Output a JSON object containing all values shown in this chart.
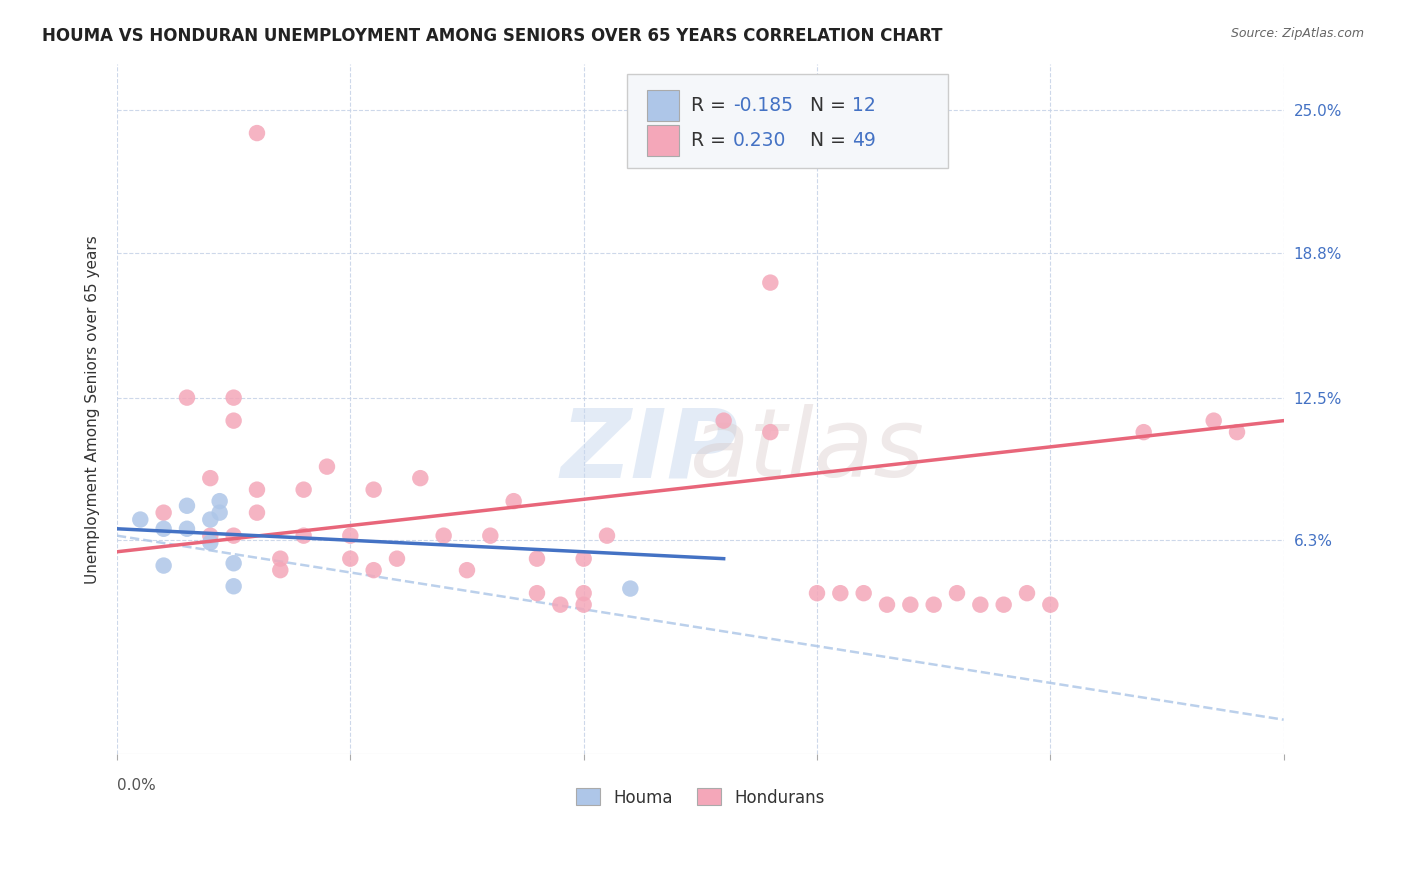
{
  "title": "HOUMA VS HONDURAN UNEMPLOYMENT AMONG SENIORS OVER 65 YEARS CORRELATION CHART",
  "source": "Source: ZipAtlas.com",
  "ylabel": "Unemployment Among Seniors over 65 years",
  "ytick_labels": [
    "6.3%",
    "12.5%",
    "18.8%",
    "25.0%"
  ],
  "ytick_values": [
    0.063,
    0.125,
    0.188,
    0.25
  ],
  "xmin": 0.0,
  "xmax": 0.25,
  "ymin": -0.03,
  "ymax": 0.27,
  "houma_color": "#aec6e8",
  "honduran_color": "#f4a7b9",
  "houma_line_color": "#4472c4",
  "honduran_line_solid_color": "#e8667a",
  "honduran_line_dashed_color": "#b0c8e8",
  "houma_scatter_x": [
    0.005,
    0.01,
    0.01,
    0.015,
    0.015,
    0.02,
    0.02,
    0.022,
    0.022,
    0.025,
    0.025,
    0.11
  ],
  "houma_scatter_y": [
    0.072,
    0.068,
    0.052,
    0.078,
    0.068,
    0.072,
    0.062,
    0.08,
    0.075,
    0.043,
    0.053,
    0.042
  ],
  "honduran_scatter_x": [
    0.03,
    0.01,
    0.015,
    0.02,
    0.02,
    0.025,
    0.025,
    0.025,
    0.03,
    0.03,
    0.035,
    0.035,
    0.04,
    0.04,
    0.045,
    0.05,
    0.05,
    0.055,
    0.055,
    0.06,
    0.065,
    0.07,
    0.075,
    0.08,
    0.085,
    0.09,
    0.09,
    0.095,
    0.1,
    0.1,
    0.1,
    0.105,
    0.13,
    0.14,
    0.14,
    0.15,
    0.155,
    0.16,
    0.165,
    0.17,
    0.175,
    0.18,
    0.185,
    0.19,
    0.195,
    0.2,
    0.22,
    0.235,
    0.24
  ],
  "honduran_scatter_y": [
    0.24,
    0.075,
    0.125,
    0.09,
    0.065,
    0.125,
    0.115,
    0.065,
    0.085,
    0.075,
    0.055,
    0.05,
    0.085,
    0.065,
    0.095,
    0.065,
    0.055,
    0.085,
    0.05,
    0.055,
    0.09,
    0.065,
    0.05,
    0.065,
    0.08,
    0.055,
    0.04,
    0.035,
    0.055,
    0.04,
    0.035,
    0.065,
    0.115,
    0.175,
    0.11,
    0.04,
    0.04,
    0.04,
    0.035,
    0.035,
    0.035,
    0.04,
    0.035,
    0.035,
    0.04,
    0.035,
    0.11,
    0.115,
    0.11
  ],
  "houma_line_x": [
    0.0,
    0.13
  ],
  "houma_line_y": [
    0.068,
    0.055
  ],
  "honduran_solid_line_x": [
    0.0,
    0.25
  ],
  "honduran_solid_line_y": [
    0.058,
    0.115
  ],
  "honduran_dashed_line_x": [
    0.0,
    0.25
  ],
  "honduran_dashed_line_y": [
    0.065,
    -0.015
  ],
  "background_color": "#ffffff",
  "grid_color": "#c8d4e8",
  "legend_box_color": "#f5f7fa"
}
